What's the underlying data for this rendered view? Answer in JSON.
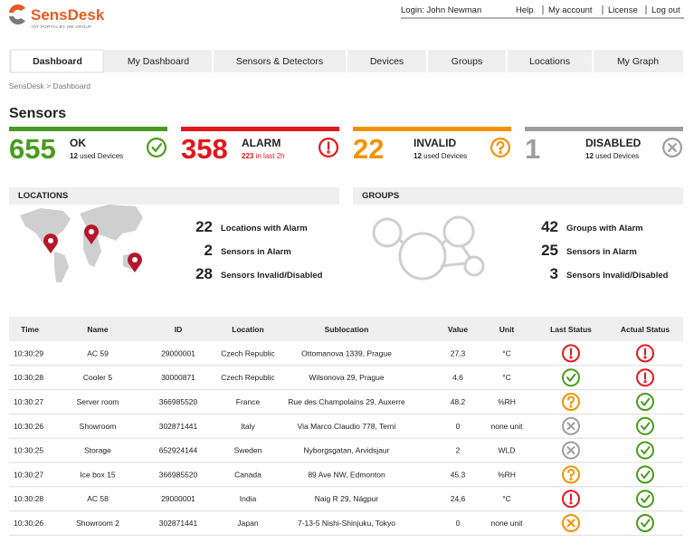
{
  "header": {
    "logo": "SensDesk",
    "tagline": "IOT PORTAL BY HW GROUP",
    "login": "Login: John Newman",
    "links": [
      "Help",
      "My account",
      "License",
      "Log out"
    ]
  },
  "tabs": [
    "Dashboard",
    "My Dashboard",
    "Sensors & Detectors",
    "Devices",
    "Groups",
    "Locations",
    "My Graph"
  ],
  "breadcrumb": "SensDesk > Dashboard",
  "sensors": {
    "title": "Sensors",
    "cards": [
      {
        "count": 655,
        "label": "OK",
        "detail_count": 12,
        "detail": "used Devices"
      },
      {
        "count": 358,
        "label": "ALARM",
        "detail_count": 223,
        "detail": "in last 2h"
      },
      {
        "count": 22,
        "label": "INVALID",
        "detail_count": 12,
        "detail": "used Devices"
      },
      {
        "count": 1,
        "label": "DISABLED",
        "detail_count": 12,
        "detail": "used Devices"
      }
    ]
  },
  "locations": {
    "title": "LOCATIONS",
    "stats": [
      {
        "value": 22,
        "label": "Locations with Alarm"
      },
      {
        "value": 2,
        "label": "Sensors in Alarm"
      },
      {
        "value": 28,
        "label": "Sensors Invalid/Disabled"
      }
    ]
  },
  "groups": {
    "title": "GROUPS",
    "stats": [
      {
        "value": 42,
        "label": "Groups with Alarm"
      },
      {
        "value": 25,
        "label": "Sensors in Alarm"
      },
      {
        "value": 3,
        "label": "Sensors Invalid/Disabled"
      }
    ]
  },
  "table": {
    "columns": [
      "Time",
      "Name",
      "ID",
      "Location",
      "Sublocation",
      "Value",
      "Unit",
      "Last Status",
      "Actual Status"
    ],
    "rows": [
      [
        "10:30:29",
        "AC 59",
        "29000001",
        "Czech Republic",
        "Ottomanova 1339, Prague",
        "27,3",
        "°C"
      ],
      [
        "10:30:28",
        "Cooler 5",
        "30000871",
        "Czech Republic",
        "Wilsonova 29, Prague",
        "4,6",
        "°C"
      ],
      [
        "10:30:27",
        "Server room",
        "366985520",
        "France",
        "Rue des Champolains 29, Auxerre",
        "48.2",
        "%RH"
      ],
      [
        "10:30:26",
        "Showroom",
        "302871441",
        "Italy",
        "Via Marco Claudio 778, Terni",
        "0",
        "none unit"
      ],
      [
        "10:30:25",
        "Storage",
        "652924144",
        "Sweden",
        "Nyborgsgatan, Arvidsjaur",
        "2",
        "WLD"
      ],
      [
        "10:30:27",
        "Ice box 15",
        "366985520",
        "Canada",
        "89 Ave NW, Edmonton",
        "45.3",
        "%RH"
      ],
      [
        "10:30:28",
        "AC 58",
        "29000001",
        "India",
        "Naig R 29, Nágpur",
        "24,6",
        "°C"
      ],
      [
        "10:30:26",
        "Showroom 2",
        "302871441",
        "Japan",
        "7-13-5 Nishi-Shinjuku, Tokyo",
        "0",
        "none unit"
      ]
    ]
  }
}
